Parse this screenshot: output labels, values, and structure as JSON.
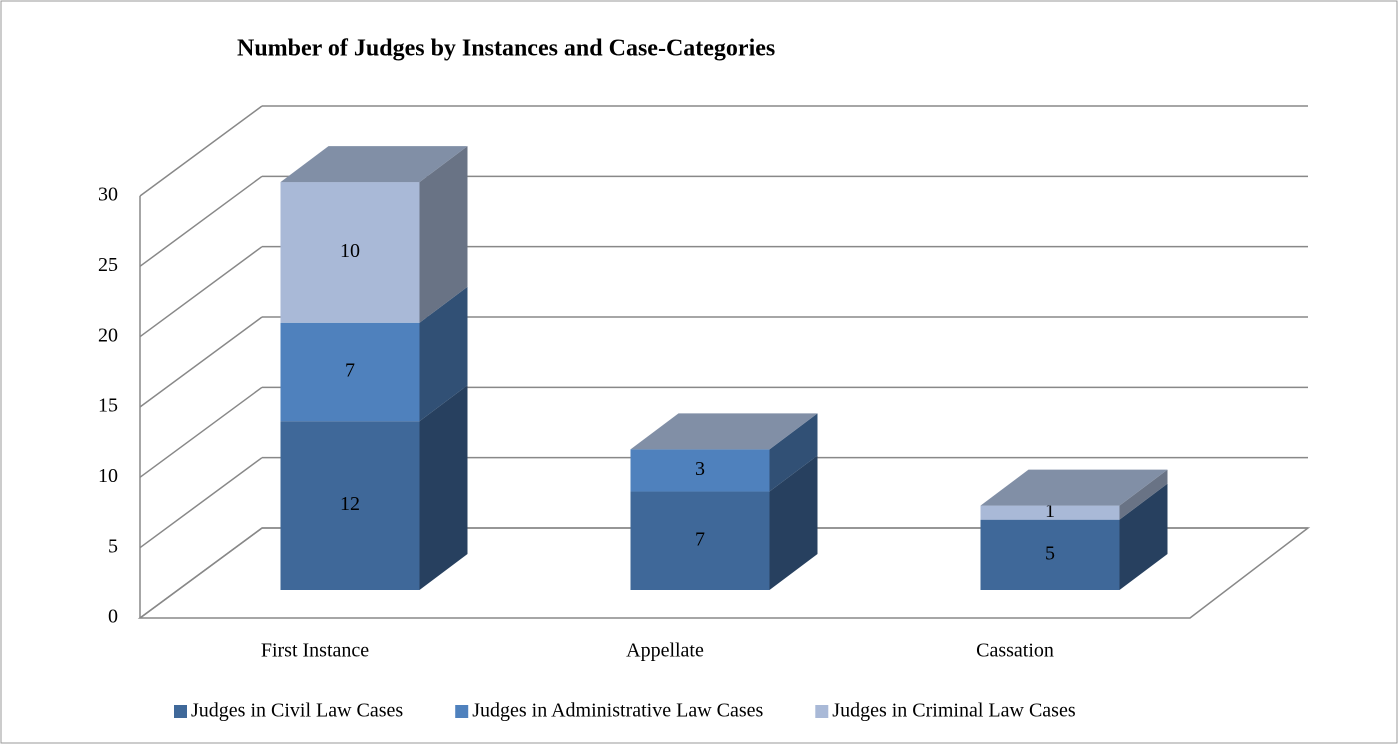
{
  "chart_data": {
    "type": "bar3d_stacked",
    "title": "Number of Judges by Instances and Case-Categories",
    "categories": [
      "First Instance",
      "Appellate",
      "Cassation"
    ],
    "series": [
      {
        "name": "Judges in Civil Law Cases",
        "color": "#3f6899",
        "values": [
          12,
          7,
          5
        ]
      },
      {
        "name": "Judges in Administrative Law Cases",
        "color": "#4f81bd",
        "values": [
          7,
          3,
          null
        ]
      },
      {
        "name": "Judges in Criminal Law Cases",
        "color": "#a9b9d7",
        "values": [
          10,
          null,
          1
        ]
      }
    ],
    "ylim": [
      0,
      30
    ],
    "yticks": [
      0,
      5,
      10,
      15,
      20,
      25,
      30
    ],
    "grid": true,
    "legend": "bottom"
  }
}
